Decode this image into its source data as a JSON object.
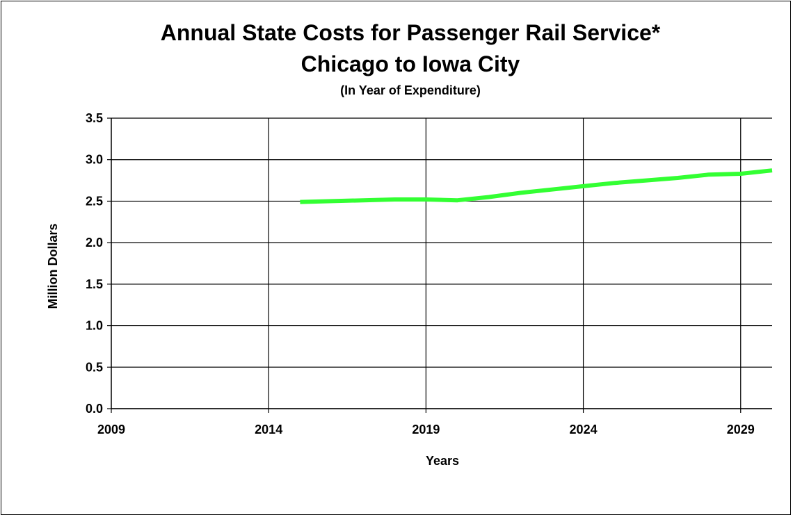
{
  "chart_data": {
    "type": "line",
    "title": "Annual State Costs for Passenger Rail Service*",
    "title_line2": "Chicago to Iowa City",
    "subtitle": "(In Year of Expenditure)",
    "xlabel": "Years",
    "ylabel": "Million Dollars",
    "xlim": [
      2009,
      2030
    ],
    "ylim": [
      0.0,
      3.5
    ],
    "x_ticks": [
      2009,
      2014,
      2019,
      2024,
      2029
    ],
    "x_tick_labels": [
      "2009",
      "2014",
      "2019",
      "2024",
      "2029"
    ],
    "y_ticks": [
      0.0,
      0.5,
      1.0,
      1.5,
      2.0,
      2.5,
      3.0,
      3.5
    ],
    "y_tick_labels": [
      "0.0",
      "0.5",
      "1.0",
      "1.5",
      "2.0",
      "2.5",
      "3.0",
      "3.5"
    ],
    "grid": true,
    "series": [
      {
        "color": "#33ff33",
        "x": [
          2015,
          2016,
          2017,
          2018,
          2019,
          2020,
          2021,
          2022,
          2023,
          2024,
          2025,
          2026,
          2027,
          2028,
          2029,
          2030
        ],
        "values": [
          2.49,
          2.5,
          2.51,
          2.52,
          2.52,
          2.51,
          2.55,
          2.6,
          2.64,
          2.68,
          2.72,
          2.75,
          2.78,
          2.82,
          2.83,
          2.87
        ]
      }
    ]
  }
}
